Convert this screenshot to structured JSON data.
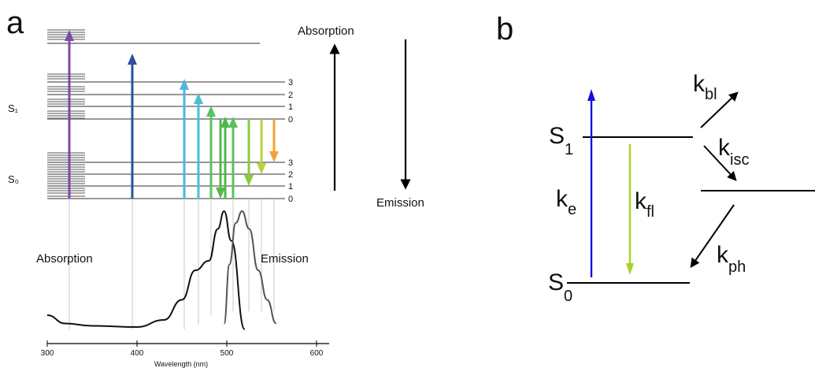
{
  "panels": {
    "a": {
      "panel_label": "a",
      "state_labels": {
        "s1": "S₁",
        "s0": "S₀"
      },
      "vib_labels_s1": [
        "3",
        "2",
        "1",
        "0"
      ],
      "vib_labels_s0": [
        "3",
        "2",
        "1",
        "0"
      ],
      "absorption_arrow_label": "Absorption",
      "emission_arrow_label": "Emission",
      "spectrum_absorption_label": "Absorption",
      "spectrum_emission_label": "Emission",
      "x_axis_label": "Wavelength (nm)",
      "x_ticks": [
        "300",
        "400",
        "500",
        "600"
      ],
      "colors": {
        "excitation_arrows": [
          "#7b4aa8",
          "#2c4fa0",
          "#4db6e0",
          "#47c1d0",
          "#5cc160",
          "#4fb84a"
        ],
        "emission_arrows": [
          "#55b848",
          "#62bf44",
          "#8ac93e",
          "#b8d23a",
          "#f2a23a"
        ]
      }
    },
    "b": {
      "panel_label": "b",
      "s1_label": "S",
      "s1_sub": "1",
      "s0_label": "S",
      "s0_sub": "0",
      "rate_labels": {
        "ke": {
          "base": "k",
          "sub": "e"
        },
        "kfl": {
          "base": "k",
          "sub": "fl"
        },
        "kbl": {
          "base": "k",
          "sub": "bl"
        },
        "kisc": {
          "base": "k",
          "sub": "isc"
        },
        "kph": {
          "base": "k",
          "sub": "ph"
        }
      },
      "colors": {
        "excitation": "#1010e0",
        "fluorescence": "#a6d22a"
      }
    }
  },
  "chart_data": {
    "type": "line",
    "xlabel": "Wavelength (nm)",
    "ylabel": "",
    "xlim": [
      300,
      600
    ],
    "series": [
      {
        "name": "Absorption",
        "x": [
          300,
          320,
          350,
          400,
          430,
          450,
          465,
          480,
          490,
          497,
          505,
          520
        ],
        "y": [
          0.12,
          0.05,
          0.03,
          0.02,
          0.08,
          0.25,
          0.5,
          0.58,
          0.85,
          1.0,
          0.75,
          0.0
        ]
      },
      {
        "name": "Emission",
        "x": [
          497,
          503,
          510,
          517,
          525,
          535,
          545,
          555
        ],
        "y": [
          0.05,
          0.55,
          0.9,
          1.0,
          0.85,
          0.5,
          0.25,
          0.05
        ]
      }
    ]
  }
}
